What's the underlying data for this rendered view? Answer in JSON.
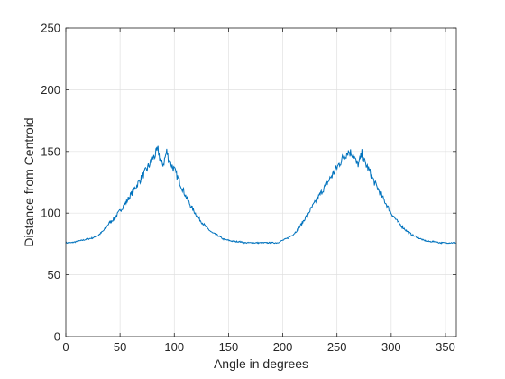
{
  "chart_data": {
    "type": "line",
    "title": "",
    "xlabel": "Angle in degrees",
    "ylabel": "Distance from Centroid",
    "xlim": [
      0,
      360
    ],
    "ylim": [
      0,
      250
    ],
    "x_ticks": [
      0,
      50,
      100,
      150,
      200,
      250,
      300,
      350
    ],
    "y_ticks": [
      0,
      50,
      100,
      150,
      200,
      250
    ],
    "x_tick_labels": [
      "0",
      "50",
      "100",
      "150",
      "200",
      "250",
      "300",
      "350"
    ],
    "y_tick_labels": [
      "0",
      "50",
      "100",
      "150",
      "200",
      "250"
    ],
    "grid": true,
    "line_color": "#0072BD",
    "series": [
      {
        "x": [
          0,
          5,
          10,
          15,
          20,
          25,
          30,
          35,
          40,
          45,
          50,
          55,
          60,
          65,
          70,
          75,
          80,
          85,
          88,
          90,
          93,
          95,
          100,
          105,
          110,
          115,
          120,
          125,
          130,
          135,
          140,
          145,
          150,
          155,
          160,
          165,
          170,
          175,
          180,
          185,
          190,
          195,
          200,
          205,
          210,
          215,
          220,
          225,
          230,
          235,
          240,
          245,
          250,
          255,
          260,
          265,
          268,
          270,
          273,
          275,
          280,
          285,
          290,
          295,
          300,
          305,
          310,
          315,
          320,
          325,
          330,
          335,
          340,
          345,
          350,
          355,
          360
        ],
        "y": [
          76,
          76,
          77,
          78,
          79,
          80,
          82,
          86,
          92,
          96,
          102,
          108,
          115,
          122,
          129,
          136,
          144,
          151,
          140,
          140,
          150,
          143,
          135,
          125,
          115,
          106,
          99,
          93,
          88,
          84,
          82,
          79,
          78,
          77,
          77,
          76,
          76,
          76,
          76,
          76,
          76,
          76,
          78,
          80,
          83,
          88,
          95,
          102,
          109,
          116,
          123,
          130,
          137,
          144,
          150,
          148,
          140,
          140,
          148,
          142,
          134,
          124,
          116,
          108,
          100,
          94,
          89,
          85,
          82,
          80,
          78,
          77,
          77,
          76,
          76,
          76,
          76
        ]
      }
    ]
  }
}
